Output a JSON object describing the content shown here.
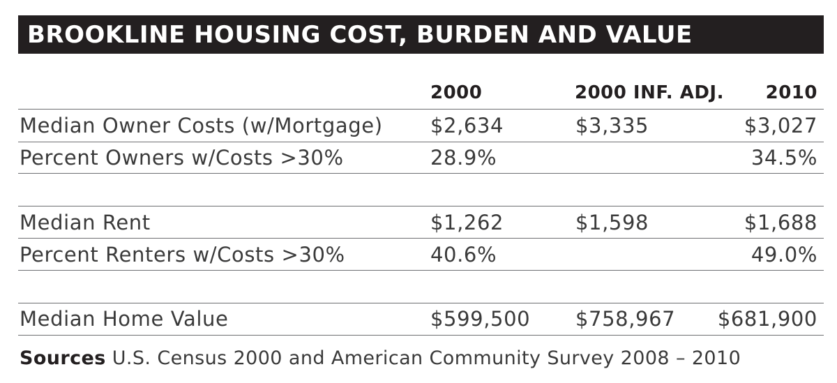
{
  "title": "BROOKLINE HOUSING COST, BURDEN AND VALUE",
  "columns": {
    "c2000": "2000",
    "inf_adj": "2000 INF. ADJ.",
    "c2010": "2010"
  },
  "rows": [
    {
      "label": "Median Owner Costs (w/Mortgage)",
      "v2000": "$2,634",
      "inf_adj": "$3,335",
      "v2010": "$3,027"
    },
    {
      "label": "Percent Owners w/Costs >30%",
      "v2000": "28.9%",
      "inf_adj": "",
      "v2010": "34.5%"
    },
    {
      "label": "Median Rent",
      "v2000": "$1,262",
      "inf_adj": "$1,598",
      "v2010": "$1,688"
    },
    {
      "label": "Percent Renters w/Costs >30%",
      "v2000": "40.6%",
      "inf_adj": "",
      "v2010": "49.0%"
    },
    {
      "label": "Median Home Value",
      "v2000": "$599,500",
      "inf_adj": "$758,967",
      "v2010": "$681,900"
    }
  ],
  "sources": {
    "label": "Sources",
    "text": "U.S. Census 2000 and American Community Survey 2008 – 2010"
  }
}
